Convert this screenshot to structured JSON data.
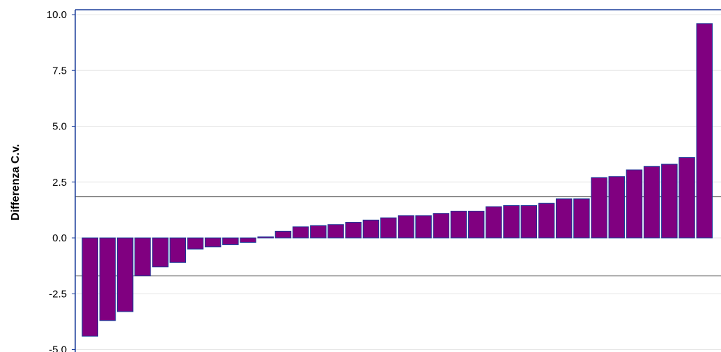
{
  "chart_data": {
    "type": "bar",
    "title": "",
    "xlabel": "",
    "ylabel": "Differenza C.v.",
    "ylim": [
      -5.0,
      10.0
    ],
    "yticks": [
      "10.0",
      "7.5",
      "5.0",
      "2.5",
      "0.0",
      "-2.5",
      "-5.0"
    ],
    "ytick_values": [
      10.0,
      7.5,
      5.0,
      2.5,
      0.0,
      -2.5,
      -5.0
    ],
    "grid": true,
    "reference_lines": [
      1.85,
      -1.7
    ],
    "bar_color": "#800080",
    "bar_edge_color": "#1a3d9a",
    "plot_border_color": "#1a3d9a",
    "series": [
      {
        "values": [
          -4.4,
          -3.7,
          -3.3,
          -1.7,
          -1.3,
          -1.1,
          -0.5,
          -0.4,
          -0.3,
          -0.2,
          0.05,
          0.3,
          0.5,
          0.55,
          0.6,
          0.7,
          0.8,
          0.9,
          1.0,
          1.0,
          1.1,
          1.2,
          1.2,
          1.4,
          1.45,
          1.45,
          1.55,
          1.75,
          1.75,
          2.7,
          2.75,
          3.05,
          3.2,
          3.3,
          3.6,
          9.6
        ]
      }
    ]
  }
}
